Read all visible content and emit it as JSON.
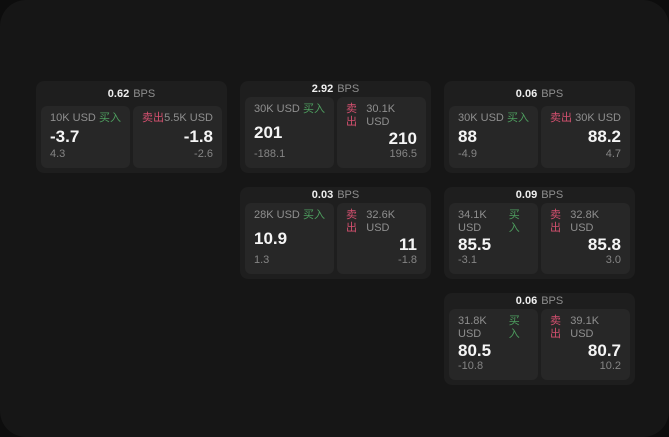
{
  "labels": {
    "bps_unit": "BPS",
    "buy": "买入",
    "sell": "卖出"
  },
  "colors": {
    "buy_green": "#4e9e5f",
    "sell_red": "#d4506f",
    "window_bg": "#161616",
    "card_bg": "#1e1e1e",
    "panel_bg": "#272727"
  },
  "cards": [
    {
      "bps": "0.62",
      "buy": {
        "amount": "10K USD",
        "value": "-3.7",
        "sub": "4.3"
      },
      "sell": {
        "amount": "5.5K USD",
        "value": "-1.8",
        "sub": "-2.6"
      }
    },
    {
      "bps": "2.92",
      "buy": {
        "amount": "30K USD",
        "value": "201",
        "sub": "-188.1"
      },
      "sell": {
        "amount": "30.1K USD",
        "value": "210",
        "sub": "196.5"
      }
    },
    {
      "bps": "0.06",
      "buy": {
        "amount": "30K USD",
        "value": "88",
        "sub": "-4.9"
      },
      "sell": {
        "amount": "30K USD",
        "value": "88.2",
        "sub": "4.7"
      }
    },
    {
      "bps": "0.03",
      "buy": {
        "amount": "28K USD",
        "value": "10.9",
        "sub": "1.3"
      },
      "sell": {
        "amount": "32.6K USD",
        "value": "11",
        "sub": "-1.8"
      }
    },
    {
      "bps": "0.09",
      "buy": {
        "amount": "34.1K USD",
        "value": "85.5",
        "sub": "-3.1"
      },
      "sell": {
        "amount": "32.8K USD",
        "value": "85.8",
        "sub": "3.0"
      }
    },
    {
      "bps": "0.06",
      "buy": {
        "amount": "31.8K USD",
        "value": "80.5",
        "sub": "-10.8"
      },
      "sell": {
        "amount": "39.1K USD",
        "value": "80.7",
        "sub": "10.2"
      }
    }
  ]
}
